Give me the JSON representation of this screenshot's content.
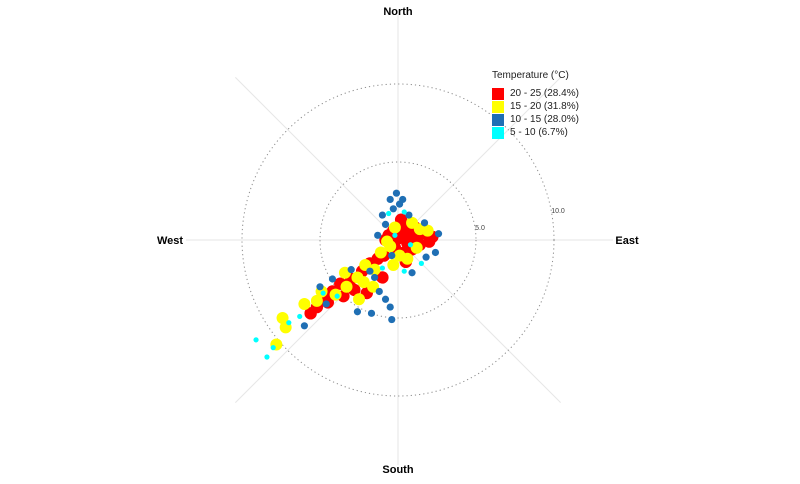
{
  "chart_data": {
    "type": "scatter",
    "coordinate_system": "polar",
    "title": "",
    "directions": {
      "north": "North",
      "east": "East",
      "south": "South",
      "west": "West"
    },
    "radial_ticks": [
      "5.0",
      "10.0"
    ],
    "radial_max": 10.0,
    "grid": true,
    "legend": {
      "title": "Temperature (°C)",
      "placement": "top-right",
      "entries": [
        {
          "label": "20 - 25 (28.4%)",
          "color": "#ff0000"
        },
        {
          "label": "15 - 20 (31.8%)",
          "color": "#ffff00"
        },
        {
          "label": "10 - 15 (28.0%)",
          "color": "#1f6fb4"
        },
        {
          "label": "5 - 10 (6.7%)",
          "color": "#00ffff"
        }
      ]
    },
    "series": [
      {
        "name": "20 - 25 (28.4%)",
        "points": [
          [
            0.3,
            0.5
          ],
          [
            0.5,
            0.6
          ],
          [
            0.8,
            0.4
          ],
          [
            0.2,
            0.9
          ],
          [
            -0.3,
            0.6
          ],
          [
            -0.6,
            0.3
          ],
          [
            -0.8,
            0.0
          ],
          [
            0.6,
            -0.2
          ],
          [
            1.0,
            0.1
          ],
          [
            1.3,
            0.3
          ],
          [
            1.5,
            0.6
          ],
          [
            1.8,
            0.4
          ],
          [
            1.4,
            -0.3
          ],
          [
            0.9,
            -0.6
          ],
          [
            0.4,
            -0.8
          ],
          [
            -0.2,
            -0.5
          ],
          [
            -0.5,
            -0.2
          ],
          [
            0.0,
            0.1
          ],
          [
            2.2,
            0.2
          ],
          [
            2.0,
            -0.1
          ],
          [
            1.1,
            0.8
          ],
          [
            0.2,
            1.3
          ],
          [
            -1.3,
            -1.2
          ],
          [
            -1.8,
            -1.5
          ],
          [
            -2.3,
            -2.0
          ],
          [
            -3.0,
            -2.5
          ],
          [
            -3.7,
            -2.8
          ],
          [
            -4.2,
            -3.3
          ],
          [
            -4.7,
            -3.8
          ],
          [
            -5.2,
            -4.3
          ],
          [
            -5.6,
            -4.7
          ],
          [
            -3.5,
            -3.6
          ],
          [
            -2.8,
            -3.2
          ],
          [
            -4.5,
            -4.0
          ],
          [
            -2.0,
            -3.4
          ],
          [
            -1.0,
            -2.4
          ],
          [
            0.5,
            -1.4
          ],
          [
            -0.9,
            -1.0
          ]
        ]
      },
      {
        "name": "15 - 20 (31.8%)",
        "points": [
          [
            1.4,
            0.7
          ],
          [
            1.9,
            0.6
          ],
          [
            0.9,
            1.1
          ],
          [
            -0.2,
            0.8
          ],
          [
            -0.5,
            -0.4
          ],
          [
            -0.7,
            -0.1
          ],
          [
            1.2,
            -0.5
          ],
          [
            0.6,
            -1.2
          ],
          [
            0.1,
            -1.0
          ],
          [
            -1.1,
            -0.8
          ],
          [
            -1.5,
            -1.9
          ],
          [
            -2.1,
            -1.6
          ],
          [
            -2.6,
            -2.4
          ],
          [
            -3.3,
            -3.0
          ],
          [
            -3.4,
            -2.1
          ],
          [
            -2.2,
            -2.7
          ],
          [
            -4.0,
            -3.5
          ],
          [
            -4.9,
            -3.3
          ],
          [
            -5.2,
            -3.9
          ],
          [
            -6.0,
            -4.1
          ],
          [
            -7.4,
            -5.0
          ],
          [
            -7.2,
            -5.6
          ],
          [
            -7.8,
            -6.7
          ],
          [
            -1.6,
            -3.0
          ],
          [
            -2.5,
            -3.8
          ],
          [
            -0.3,
            -1.6
          ]
        ]
      },
      {
        "name": "10 - 15 (28.0%)",
        "points": [
          [
            -0.1,
            3.0
          ],
          [
            -0.5,
            2.6
          ],
          [
            -0.3,
            2.0
          ],
          [
            0.1,
            2.3
          ],
          [
            -1.0,
            1.6
          ],
          [
            -1.3,
            0.3
          ],
          [
            -0.8,
            1.0
          ],
          [
            -0.4,
            -1.0
          ],
          [
            0.9,
            -2.1
          ],
          [
            2.6,
            0.4
          ],
          [
            2.4,
            -0.8
          ],
          [
            1.8,
            -1.1
          ],
          [
            0.3,
            2.6
          ],
          [
            -1.8,
            -2.0
          ],
          [
            -3.0,
            -1.9
          ],
          [
            -4.2,
            -2.5
          ],
          [
            -5.0,
            -3.0
          ],
          [
            -4.6,
            -4.1
          ],
          [
            -6.0,
            -5.5
          ],
          [
            -1.2,
            -3.3
          ],
          [
            -0.5,
            -4.3
          ],
          [
            -0.4,
            -5.1
          ],
          [
            -1.7,
            -4.7
          ],
          [
            -0.8,
            -3.8
          ],
          [
            0.7,
            1.6
          ],
          [
            1.7,
            1.1
          ],
          [
            -1.5,
            -2.4
          ],
          [
            -2.6,
            -4.6
          ]
        ]
      },
      {
        "name": "5 - 10 (6.7%)",
        "points": [
          [
            -0.6,
            1.7
          ],
          [
            0.4,
            1.8
          ],
          [
            -0.2,
            0.3
          ],
          [
            0.4,
            -2.0
          ],
          [
            0.8,
            -0.3
          ],
          [
            -8.0,
            -6.9
          ],
          [
            -7.0,
            -5.3
          ],
          [
            -9.1,
            -6.4
          ],
          [
            -8.4,
            -7.5
          ],
          [
            -4.8,
            -3.4
          ],
          [
            -1.0,
            -1.8
          ],
          [
            -3.9,
            -3.6
          ],
          [
            1.5,
            -1.5
          ],
          [
            -6.3,
            -4.9
          ]
        ]
      }
    ]
  }
}
